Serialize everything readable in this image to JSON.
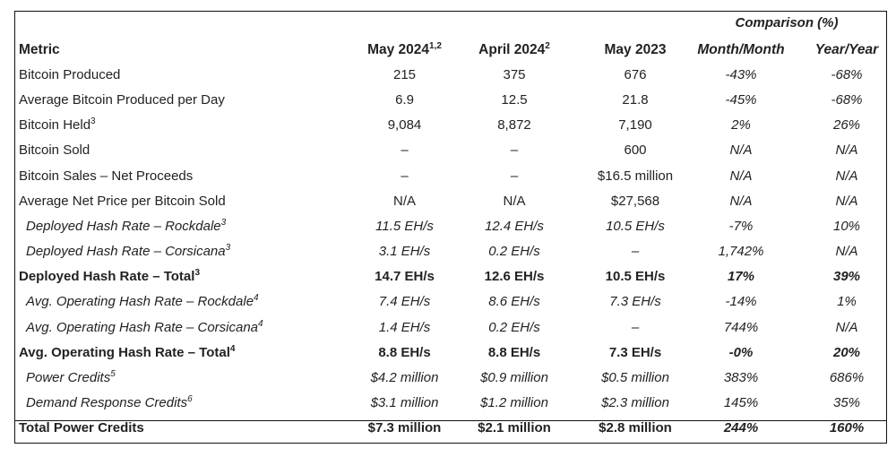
{
  "header": {
    "comparison": "Comparison (%)",
    "metric": "Metric",
    "col1": "May 2024",
    "col1_sup": "1,2",
    "col2": "April 2024",
    "col2_sup": "2",
    "col3": "May 2023",
    "col4": "Month/Month",
    "col5": "Year/Year"
  },
  "rows": [
    {
      "metric": "Bitcoin Produced",
      "sup": "",
      "v": [
        "215",
        "375",
        "676",
        "-43%",
        "-68%"
      ]
    },
    {
      "metric": "Average Bitcoin Produced per Day",
      "sup": "",
      "v": [
        "6.9",
        "12.5",
        "21.8",
        "-45%",
        "-68%"
      ]
    },
    {
      "metric": "Bitcoin Held",
      "sup": "3",
      "v": [
        "9,084",
        "8,872",
        "7,190",
        "2%",
        "26%"
      ]
    },
    {
      "metric": "Bitcoin Sold",
      "sup": "",
      "v": [
        "–",
        "–",
        "600",
        "N/A",
        "N/A"
      ]
    },
    {
      "metric": "Bitcoin Sales – Net Proceeds",
      "sup": "",
      "v": [
        "–",
        "–",
        "$16.5 million",
        "N/A",
        "N/A"
      ]
    },
    {
      "metric": "Average Net Price per Bitcoin Sold",
      "sup": "",
      "v": [
        "N/A",
        "N/A",
        "$27,568",
        "N/A",
        "N/A"
      ]
    },
    {
      "metric": "Deployed Hash Rate – Rockdale",
      "sup": "3",
      "v": [
        "11.5 EH/s",
        "12.4 EH/s",
        "10.5 EH/s",
        "-7%",
        "10%"
      ]
    },
    {
      "metric": "Deployed Hash Rate – Corsicana",
      "sup": "3",
      "v": [
        "3.1 EH/s",
        "0.2 EH/s",
        "–",
        "1,742%",
        "N/A"
      ]
    },
    {
      "metric": "Deployed Hash Rate – Total",
      "sup": "3",
      "v": [
        "14.7 EH/s",
        "12.6 EH/s",
        "10.5 EH/s",
        "17%",
        "39%"
      ]
    },
    {
      "metric": "Avg. Operating Hash Rate – Rockdale",
      "sup": "4",
      "v": [
        "7.4 EH/s",
        "8.6 EH/s",
        "7.3 EH/s",
        "-14%",
        "1%"
      ]
    },
    {
      "metric": "Avg. Operating Hash Rate – Corsicana",
      "sup": "4",
      "v": [
        "1.4 EH/s",
        "0.2 EH/s",
        "–",
        "744%",
        "N/A"
      ]
    },
    {
      "metric": "Avg. Operating Hash Rate – Total",
      "sup": "4",
      "v": [
        "8.8 EH/s",
        "8.8 EH/s",
        "7.3 EH/s",
        "-0%",
        "20%"
      ]
    },
    {
      "metric": "Power Credits",
      "sup": "5",
      "v": [
        "$4.2 million",
        "$0.9 million",
        "$0.5 million",
        "383%",
        "686%"
      ]
    },
    {
      "metric": "Demand Response Credits",
      "sup": "6",
      "v": [
        "$3.1 million",
        "$1.2 million",
        "$2.3 million",
        "145%",
        "35%"
      ]
    },
    {
      "metric": "Total Power Credits",
      "sup": "",
      "v": [
        "$7.3 million",
        "$2.1 million",
        "$2.8 million",
        "244%",
        "160%"
      ]
    }
  ]
}
